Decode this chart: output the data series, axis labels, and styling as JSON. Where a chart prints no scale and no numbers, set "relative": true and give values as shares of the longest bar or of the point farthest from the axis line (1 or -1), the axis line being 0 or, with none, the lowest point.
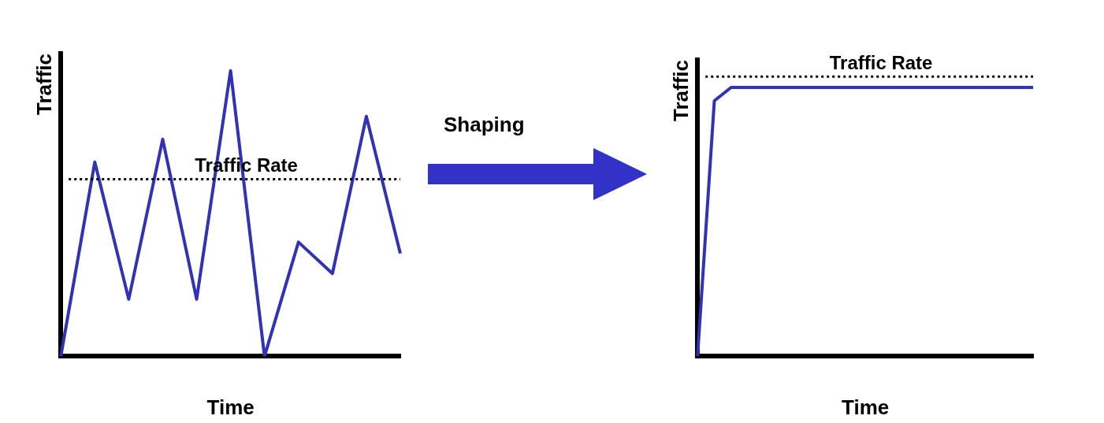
{
  "chart_data": [
    {
      "type": "line",
      "relative": true,
      "xlabel": "Time",
      "ylabel": "Traffic",
      "categories": [
        null,
        null,
        null,
        null,
        null,
        null,
        null,
        null,
        null,
        null,
        null
      ],
      "series": [
        {
          "color": "#3232b4",
          "values": [
            0,
            0.68,
            0.2,
            0.76,
            0.2,
            1,
            0,
            0.4,
            0.29,
            0.84,
            0.36
          ]
        }
      ],
      "ref_lines": [
        {
          "axis": "y",
          "value": 0.62,
          "label": "Traffic Rate",
          "color": "#000000",
          "line_style": "dotted"
        }
      ],
      "grid": false,
      "legend": false,
      "marker": "none",
      "line_style": "solid"
    },
    {
      "type": "other",
      "annotations": [
        "Shaping"
      ]
    },
    {
      "type": "line",
      "relative": true,
      "xlabel": "Time",
      "ylabel": "Traffic",
      "categories": [
        null,
        null,
        null,
        null,
        null,
        null,
        null,
        null,
        null,
        null,
        null,
        null,
        null,
        null,
        null,
        null,
        null,
        null,
        null,
        null,
        null
      ],
      "series": [
        {
          "color": "#3232b4",
          "values": [
            0,
            0.95,
            1,
            1,
            1,
            1,
            1,
            1,
            1,
            1,
            1,
            1,
            1,
            1,
            1,
            1,
            1,
            1,
            1,
            1,
            1
          ]
        }
      ],
      "ref_lines": [
        {
          "axis": "y",
          "value": 1.04,
          "label": "Traffic Rate",
          "color": "#000000",
          "line_style": "dotted"
        }
      ],
      "grid": false,
      "legend": false,
      "marker": "none",
      "line_style": "solid"
    }
  ]
}
